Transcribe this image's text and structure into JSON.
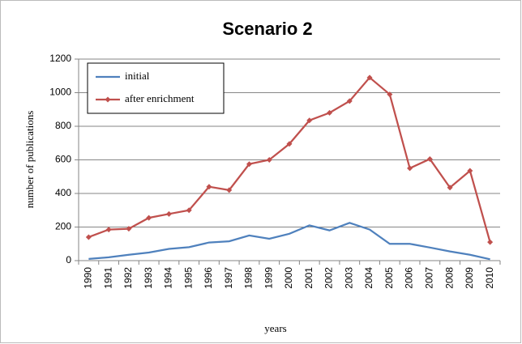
{
  "chart_data": {
    "type": "line",
    "title": "Scenario 2",
    "x_label": "years",
    "y_label": "number of publications",
    "categories": [
      "1990",
      "1991",
      "1992",
      "1993",
      "1994",
      "1995",
      "1996",
      "1997",
      "1998",
      "1999",
      "2000",
      "2001",
      "2002",
      "2003",
      "2004",
      "2005",
      "2006",
      "2007",
      "2008",
      "2009",
      "2010"
    ],
    "series": [
      {
        "name": "initial",
        "color": "#4f81bd",
        "markers": false,
        "values": [
          10,
          20,
          35,
          48,
          70,
          80,
          108,
          115,
          150,
          130,
          160,
          210,
          180,
          225,
          185,
          100,
          100,
          78,
          55,
          35,
          8
        ]
      },
      {
        "name": "after enrichment",
        "color": "#c0504d",
        "markers": true,
        "values": [
          140,
          185,
          190,
          255,
          278,
          300,
          440,
          420,
          575,
          600,
          695,
          835,
          880,
          950,
          1090,
          990,
          550,
          605,
          435,
          535,
          110
        ]
      }
    ],
    "ylim": [
      0,
      1200
    ],
    "yticks": [
      0,
      200,
      400,
      600,
      800,
      1000,
      1200
    ],
    "grid": true,
    "legend": "upper left"
  }
}
